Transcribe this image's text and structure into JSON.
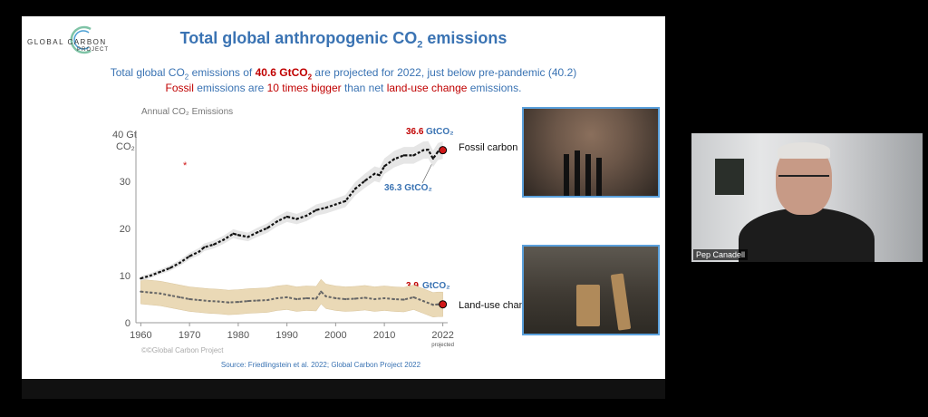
{
  "slide": {
    "title_main": "Total global anthropogenic CO",
    "title_sub": "2",
    "title_end": " emissions",
    "logo": {
      "top": "GLOBAL CARBON",
      "bottom": "PROJECT"
    },
    "line1": {
      "a": "Total global CO",
      "sub": "2",
      "b": " emissions of ",
      "value": "40.6 GtCO",
      "value_sub": "2",
      "c": " are projected for 2022, just below pre-pandemic (40.2)"
    },
    "line2": {
      "a": "Fossil",
      "b": " emissions are ",
      "c": "10 times bigger",
      "d": " than net ",
      "e": "land-use change",
      "f": " emissions."
    },
    "source": "Source: Friedlingstein et al. 2022; Global Carbon Project 2022",
    "watermark": "Global Carbon Project"
  },
  "chart_data": {
    "type": "line",
    "title": "Annual CO₂ Emissions",
    "ylabel_top": "40 Gt",
    "ylabel_unit": "CO₂",
    "ylim": [
      0,
      40
    ],
    "xlim": [
      1959,
      2023
    ],
    "yticks": [
      "0",
      "10",
      "20",
      "30"
    ],
    "xticks": [
      "1960",
      "1970",
      "1980",
      "1990",
      "2000",
      "2010",
      "2022"
    ],
    "xtick_note": "projected",
    "series": [
      {
        "name": "Fossil carbon",
        "color": "#111111",
        "x": [
          1960,
          1962,
          1964,
          1966,
          1968,
          1970,
          1972,
          1973,
          1975,
          1977,
          1979,
          1980,
          1982,
          1984,
          1986,
          1988,
          1990,
          1992,
          1994,
          1996,
          1998,
          2000,
          2002,
          2004,
          2006,
          2008,
          2009,
          2010,
          2012,
          2014,
          2016,
          2018,
          2019,
          2020,
          2021,
          2022
        ],
        "values": [
          9.4,
          10.0,
          10.8,
          11.6,
          12.7,
          14.1,
          15.1,
          16.0,
          16.6,
          17.6,
          18.9,
          18.6,
          18.2,
          19.2,
          20.1,
          21.5,
          22.5,
          22.0,
          22.7,
          23.9,
          24.4,
          25.1,
          25.8,
          28.4,
          30.1,
          31.6,
          31.3,
          33.2,
          34.7,
          35.5,
          35.5,
          36.6,
          36.7,
          34.8,
          36.3,
          36.6
        ]
      },
      {
        "name": "Land-use change",
        "color": "#666666",
        "x": [
          1960,
          1962,
          1964,
          1966,
          1968,
          1970,
          1972,
          1974,
          1976,
          1978,
          1980,
          1982,
          1984,
          1986,
          1988,
          1990,
          1992,
          1994,
          1996,
          1997,
          1998,
          2000,
          2002,
          2004,
          2006,
          2008,
          2010,
          2012,
          2014,
          2016,
          2018,
          2020,
          2021,
          2022
        ],
        "values": [
          6.6,
          6.4,
          6.2,
          5.8,
          5.4,
          5.0,
          4.8,
          4.6,
          4.5,
          4.3,
          4.4,
          4.6,
          4.7,
          4.8,
          5.2,
          5.4,
          5.0,
          5.2,
          5.1,
          6.6,
          5.6,
          5.2,
          5.0,
          5.1,
          5.3,
          5.0,
          5.2,
          5.0,
          4.9,
          5.4,
          4.6,
          3.8,
          3.9,
          3.9
        ]
      }
    ],
    "annotations": {
      "fossil_value": "36.6",
      "fossil_unit": "GtCO₂",
      "fossil_2021": "36.3 GtCO₂",
      "fossil_label": "Fossil carbon",
      "luc_value": "3.9",
      "luc_unit": "GtCO₂",
      "luc_label": "Land-use change"
    }
  },
  "video": {
    "participant_name": "Pep Canadell"
  }
}
